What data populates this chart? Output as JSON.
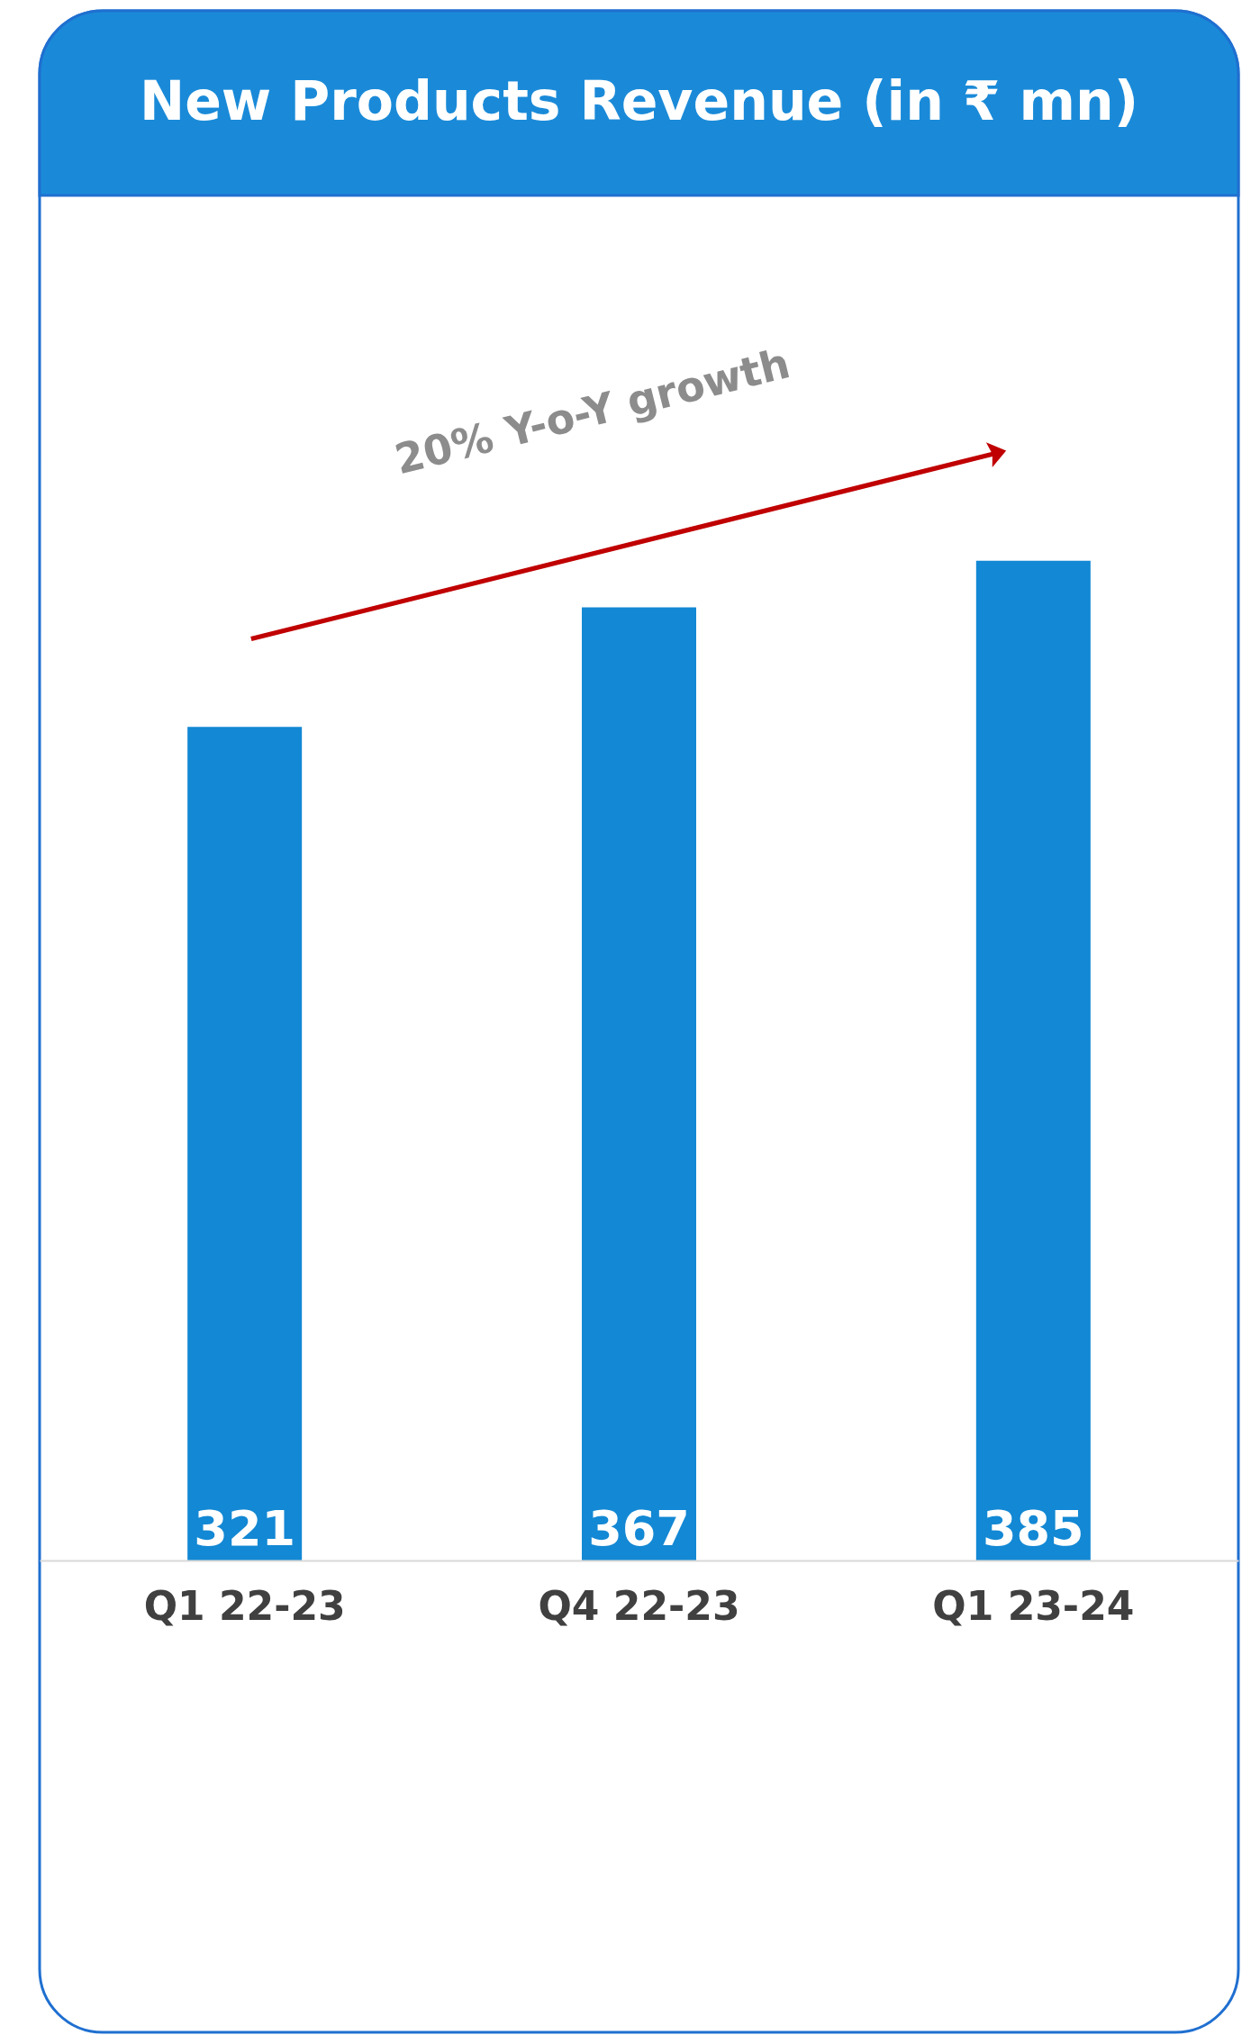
{
  "chart_data": {
    "type": "bar",
    "title": "New Products Revenue (in ₹ mn)",
    "categories": [
      "Q1 22-23",
      "Q4 22-23",
      "Q1 23-24"
    ],
    "values": [
      321,
      367,
      385
    ],
    "color": "#1388d4",
    "data_labels": true,
    "grid": false,
    "tick_labels": "x",
    "annotations": [
      "20% Y-o-Y growth"
    ]
  }
}
